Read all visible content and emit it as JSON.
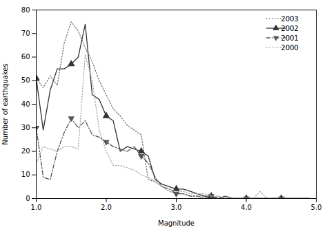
{
  "chart_data": {
    "type": "line",
    "xlabel": "Magnitude",
    "ylabel": "Number of earthquakes",
    "xlim": [
      1,
      5
    ],
    "ylim": [
      0,
      80
    ],
    "xticks": [
      1,
      2,
      3,
      4,
      5
    ],
    "yticks": [
      0,
      10,
      20,
      30,
      40,
      50,
      60,
      70,
      80
    ],
    "legend": "upper right",
    "x": [
      1.0,
      1.1,
      1.2,
      1.3,
      1.4,
      1.5,
      1.6,
      1.7,
      1.8,
      1.9,
      2.0,
      2.1,
      2.2,
      2.3,
      2.4,
      2.5,
      2.6,
      2.7,
      2.8,
      2.9,
      3.0,
      3.1,
      3.2,
      3.3,
      3.4,
      3.5,
      3.6,
      3.7,
      3.8,
      3.9,
      4.0,
      4.1,
      4.2,
      4.3,
      4.4,
      4.5,
      4.6,
      4.7,
      4.8,
      4.9
    ],
    "series": [
      {
        "name": "2003",
        "color": "#777777",
        "line_style": "dotted",
        "values": [
          51,
          47,
          52,
          48,
          66,
          75,
          71,
          64,
          58,
          50,
          44,
          38,
          35,
          31,
          29,
          27,
          8,
          7,
          5,
          3,
          2,
          2,
          1,
          1,
          1,
          0,
          1,
          0,
          0,
          0,
          0,
          0,
          0,
          0,
          0,
          0,
          0,
          0,
          0,
          0
        ]
      },
      {
        "name": "2002",
        "color": "#333333",
        "line_style": "solid",
        "marker": "triangle-up",
        "values": [
          51,
          29,
          46,
          55,
          55,
          57,
          60,
          74,
          44,
          42,
          35,
          33,
          20,
          22,
          21,
          20,
          18,
          8,
          6,
          5,
          4,
          4,
          3,
          2,
          1,
          1,
          0,
          1,
          0,
          0,
          0,
          0,
          0,
          0,
          0,
          0,
          0,
          0,
          0,
          0
        ]
      },
      {
        "name": "2001",
        "color": "#555555",
        "line_style": "dashdot",
        "marker": "triangle-down",
        "values": [
          30,
          9,
          8,
          20,
          28,
          34,
          30,
          33,
          27,
          26,
          24,
          22,
          21,
          20,
          22,
          18,
          15,
          9,
          5,
          4,
          2,
          2,
          1,
          1,
          0,
          1,
          0,
          0,
          0,
          0,
          0,
          0,
          0,
          0,
          0,
          0,
          0,
          0,
          0,
          0
        ]
      },
      {
        "name": "2000",
        "color": "#aaaaaa",
        "line_style": "dotted",
        "values": [
          15,
          22,
          21,
          20,
          22,
          22,
          21,
          61,
          50,
          29,
          20,
          14,
          14,
          13,
          12,
          10,
          9,
          7,
          5,
          4,
          3,
          3,
          2,
          2,
          2,
          1,
          1,
          0,
          0,
          0,
          0,
          0,
          3,
          0,
          0,
          0,
          0,
          0,
          0,
          0
        ]
      }
    ]
  }
}
